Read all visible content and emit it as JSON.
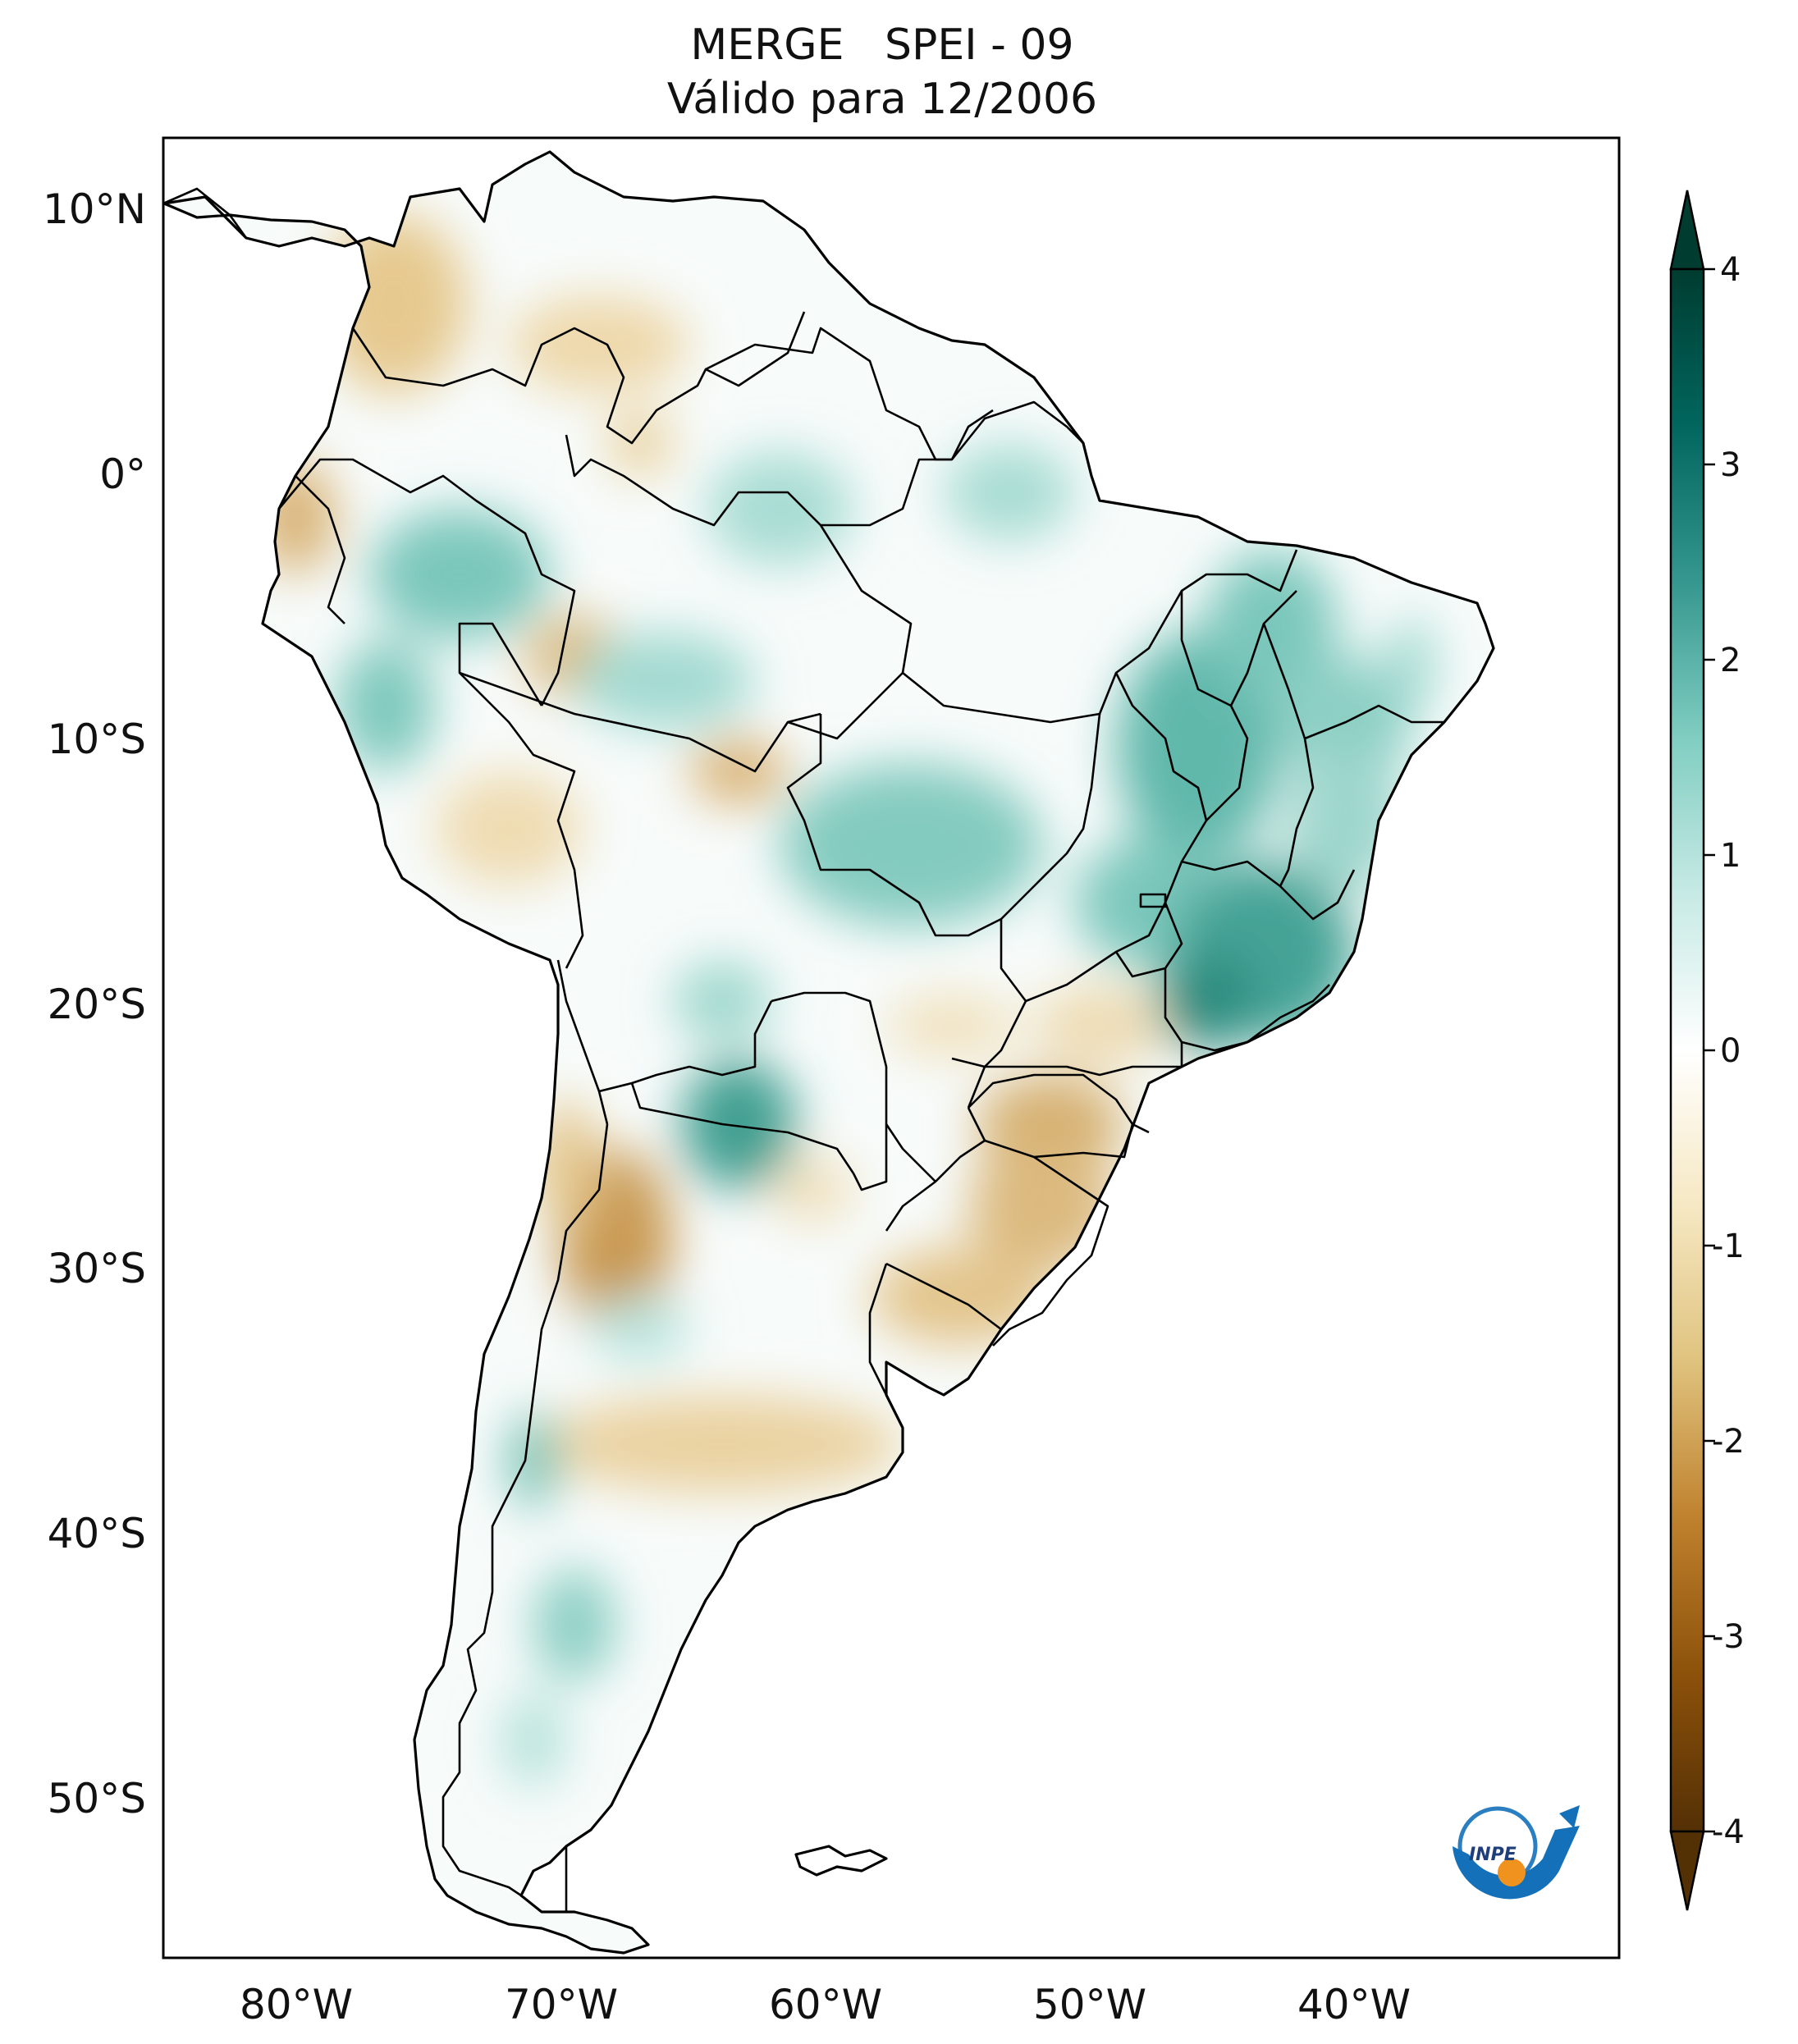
{
  "title": {
    "line1": "MERGE   SPEI - 09",
    "line2": "Válido para 12/2006"
  },
  "map_axes": {
    "lon_labels": [
      "80°W",
      "70°W",
      "60°W",
      "50°W",
      "40°W"
    ],
    "lat_labels": [
      "10°N",
      "0°",
      "10°S",
      "20°S",
      "30°S",
      "40°S",
      "50°S"
    ]
  },
  "colorbar": {
    "ticks": [
      "4",
      "3",
      "2",
      "1",
      "0",
      "-1",
      "-2",
      "-3",
      "-4"
    ],
    "extend": "both",
    "colors": [
      "#543005",
      "#8c510a",
      "#bf812d",
      "#dfc27d",
      "#f6e8c3",
      "#ffffff",
      "#c7eae5",
      "#80cdc1",
      "#35978f",
      "#01665e",
      "#003c30"
    ]
  },
  "logo": {
    "text": "INPE"
  },
  "icons": {
    "logo": "inpe-logo-icon"
  }
}
